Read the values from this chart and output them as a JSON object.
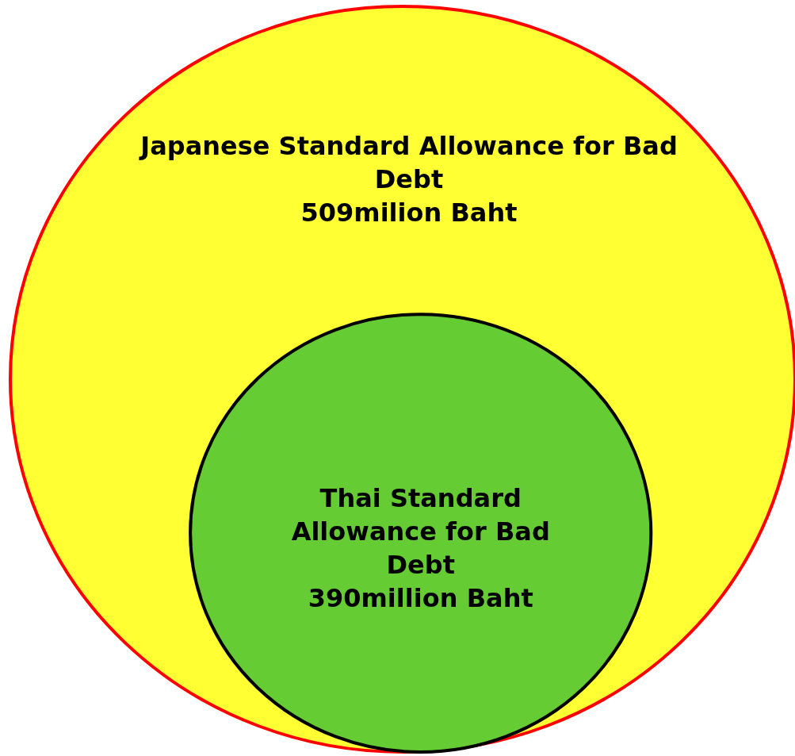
{
  "chart_data": {
    "type": "other",
    "categories": [
      "Japanese Standard Allowance for Bad Debt",
      "Thai Standard Allowance for Bad Debt"
    ],
    "values": [
      509,
      390
    ],
    "value_labels": [
      "509milion Baht",
      "390million Baht"
    ],
    "colors": [
      "#ffff33",
      "#66cc33"
    ]
  }
}
